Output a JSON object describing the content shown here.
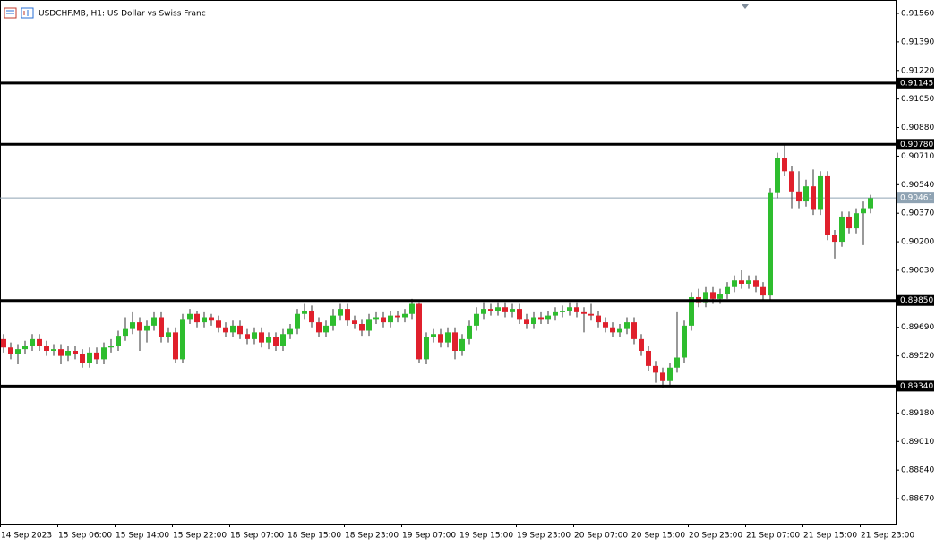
{
  "chart_data": {
    "type": "candlestick",
    "title": "USDCHF.MB, H1:  US Dollar vs Swiss Franc",
    "bull_color": "#2ebd2e",
    "bear_color": "#e0202c",
    "wick_color": "#333333",
    "ylim": [
      0.88521,
      0.9164
    ],
    "yticks": [
      {
        "value": 0.9156,
        "label": "0.91560"
      },
      {
        "value": 0.9139,
        "label": "0.91390"
      },
      {
        "value": 0.9122,
        "label": "0.91220"
      },
      {
        "value": 0.9105,
        "label": "0.91050"
      },
      {
        "value": 0.9088,
        "label": "0.90880"
      },
      {
        "value": 0.9071,
        "label": "0.90710"
      },
      {
        "value": 0.9054,
        "label": "0.90540"
      },
      {
        "value": 0.9037,
        "label": "0.90370"
      },
      {
        "value": 0.902,
        "label": "0.90200"
      },
      {
        "value": 0.9003,
        "label": "0.90030"
      },
      {
        "value": 0.8969,
        "label": "0.89690"
      },
      {
        "value": 0.8952,
        "label": "0.89520"
      },
      {
        "value": 0.8918,
        "label": "0.89180"
      },
      {
        "value": 0.8901,
        "label": "0.89010"
      },
      {
        "value": 0.8884,
        "label": "0.88840"
      },
      {
        "value": 0.8867,
        "label": "0.88670"
      }
    ],
    "levels": [
      {
        "value": 0.91145,
        "label": "0.91145"
      },
      {
        "value": 0.9078,
        "label": "0.90780"
      },
      {
        "value": 0.8985,
        "label": "0.89850"
      },
      {
        "value": 0.8934,
        "label": "0.89340"
      }
    ],
    "current_price": {
      "value": 0.90461,
      "label": "0.90461"
    },
    "categories": [
      "14 Sep 2023",
      null,
      null,
      null,
      null,
      null,
      null,
      null,
      "15 Sep 06:00",
      null,
      null,
      null,
      null,
      null,
      null,
      null,
      "15 Sep 14:00",
      null,
      null,
      null,
      null,
      null,
      null,
      null,
      "15 Sep 22:00",
      null,
      null,
      null,
      null,
      null,
      null,
      null,
      "18 Sep 07:00",
      null,
      null,
      null,
      null,
      null,
      null,
      null,
      "18 Sep 15:00",
      null,
      null,
      null,
      null,
      null,
      null,
      null,
      "18 Sep 23:00",
      null,
      null,
      null,
      null,
      null,
      null,
      null,
      "19 Sep 07:00",
      null,
      null,
      null,
      null,
      null,
      null,
      null,
      "19 Sep 15:00",
      null,
      null,
      null,
      null,
      null,
      null,
      null,
      "19 Sep 23:00",
      null,
      null,
      null,
      null,
      null,
      null,
      null,
      "20 Sep 07:00",
      null,
      null,
      null,
      null,
      null,
      null,
      null,
      "20 Sep 15:00",
      null,
      null,
      null,
      null,
      null,
      null,
      null,
      "20 Sep 23:00",
      null,
      null,
      null,
      null,
      null,
      null,
      null,
      "21 Sep 07:00",
      null,
      null,
      null,
      null,
      null,
      null,
      null,
      "21 Sep 15:00",
      null,
      null,
      null,
      null,
      null,
      null,
      null,
      "21 Sep 23:00",
      null
    ],
    "open": [
      0.8962,
      0.8957,
      0.8953,
      0.8956,
      0.8958,
      0.8962,
      0.8958,
      0.8955,
      0.8956,
      0.8952,
      0.8955,
      0.8953,
      0.8948,
      0.8954,
      0.895,
      0.8957,
      0.8958,
      0.8964,
      0.8968,
      0.8972,
      0.8967,
      0.897,
      0.8975,
      0.8963,
      0.8966,
      0.895,
      0.8974,
      0.8977,
      0.8972,
      0.8975,
      0.8973,
      0.8969,
      0.8966,
      0.897,
      0.8965,
      0.8962,
      0.8966,
      0.896,
      0.8963,
      0.8958,
      0.8965,
      0.8968,
      0.8977,
      0.8979,
      0.8972,
      0.8966,
      0.897,
      0.8976,
      0.898,
      0.8973,
      0.8971,
      0.8967,
      0.8974,
      0.8975,
      0.8972,
      0.8976,
      0.8975,
      0.8977,
      0.8983,
      0.895,
      0.8963,
      0.8965,
      0.896,
      0.8966,
      0.8955,
      0.8962,
      0.897,
      0.8977,
      0.898,
      0.8979,
      0.8981,
      0.8978,
      0.898,
      0.8974,
      0.8971,
      0.8975,
      0.8974,
      0.8976,
      0.8978,
      0.8979,
      0.8981,
      0.8978,
      0.8977,
      0.8976,
      0.8972,
      0.8969,
      0.8966,
      0.8968,
      0.8972,
      0.8962,
      0.8955,
      0.8946,
      0.8942,
      0.8937,
      0.8945,
      0.8951,
      0.897,
      0.8987,
      0.8984,
      0.899,
      0.8986,
      0.8989,
      0.8993,
      0.8997,
      0.8995,
      0.8997,
      0.8993,
      0.8988,
      0.9049,
      0.907,
      0.9062,
      0.905,
      0.9044,
      0.9053,
      0.9039,
      0.9059,
      0.9024,
      0.902,
      0.9035,
      0.9028,
      0.9037,
      0.904
    ],
    "high": [
      0.8965,
      0.896,
      0.8959,
      0.8961,
      0.8965,
      0.8965,
      0.8961,
      0.8959,
      0.8959,
      0.8958,
      0.8958,
      0.8956,
      0.8957,
      0.8957,
      0.896,
      0.8962,
      0.8967,
      0.8975,
      0.8978,
      0.8975,
      0.8973,
      0.8978,
      0.8978,
      0.8969,
      0.8969,
      0.8977,
      0.898,
      0.8979,
      0.8978,
      0.8977,
      0.8976,
      0.8972,
      0.8973,
      0.8973,
      0.8968,
      0.8969,
      0.8969,
      0.8966,
      0.8966,
      0.8968,
      0.8971,
      0.898,
      0.8983,
      0.8982,
      0.8975,
      0.8973,
      0.898,
      0.8983,
      0.8983,
      0.8976,
      0.8974,
      0.8977,
      0.8978,
      0.8978,
      0.8979,
      0.8979,
      0.898,
      0.8986,
      0.8984,
      0.8966,
      0.8968,
      0.8968,
      0.8969,
      0.8969,
      0.8965,
      0.8973,
      0.8981,
      0.8984,
      0.8983,
      0.8984,
      0.8984,
      0.8983,
      0.8983,
      0.8977,
      0.8978,
      0.8978,
      0.8979,
      0.8981,
      0.8982,
      0.8984,
      0.8984,
      0.8981,
      0.8983,
      0.8979,
      0.8975,
      0.8972,
      0.8971,
      0.8975,
      0.8975,
      0.8965,
      0.8958,
      0.8949,
      0.8945,
      0.8948,
      0.8978,
      0.8973,
      0.899,
      0.8992,
      0.8993,
      0.8993,
      0.8992,
      0.8996,
      0.9,
      0.9003,
      0.9,
      0.9,
      0.8996,
      0.9052,
      0.9073,
      0.9078,
      0.9065,
      0.9062,
      0.9057,
      0.9063,
      0.9062,
      0.9062,
      0.9027,
      0.9038,
      0.9038,
      0.904,
      0.9044,
      0.9048
    ],
    "low": [
      0.8954,
      0.895,
      0.8947,
      0.8953,
      0.8955,
      0.8955,
      0.8952,
      0.8952,
      0.8947,
      0.8949,
      0.895,
      0.8945,
      0.8945,
      0.8947,
      0.8947,
      0.8954,
      0.8955,
      0.8961,
      0.8965,
      0.8955,
      0.896,
      0.8967,
      0.896,
      0.896,
      0.8948,
      0.8948,
      0.8971,
      0.8969,
      0.8969,
      0.897,
      0.8966,
      0.8963,
      0.8963,
      0.8962,
      0.8959,
      0.8959,
      0.8957,
      0.8956,
      0.8955,
      0.8955,
      0.8962,
      0.8965,
      0.8974,
      0.8969,
      0.8963,
      0.8963,
      0.8967,
      0.8973,
      0.897,
      0.8968,
      0.8964,
      0.8964,
      0.8971,
      0.8969,
      0.8969,
      0.8972,
      0.8972,
      0.8974,
      0.8948,
      0.8947,
      0.896,
      0.8957,
      0.8957,
      0.895,
      0.8952,
      0.8959,
      0.8967,
      0.8974,
      0.8976,
      0.8976,
      0.8975,
      0.8975,
      0.8971,
      0.8968,
      0.8968,
      0.8971,
      0.8971,
      0.8973,
      0.8975,
      0.8976,
      0.8975,
      0.8966,
      0.8973,
      0.8969,
      0.8966,
      0.8963,
      0.8963,
      0.8965,
      0.8959,
      0.8952,
      0.8943,
      0.8936,
      0.8933,
      0.8934,
      0.8942,
      0.8948,
      0.8967,
      0.8981,
      0.8981,
      0.8983,
      0.8983,
      0.8986,
      0.899,
      0.8992,
      0.8992,
      0.899,
      0.8985,
      0.8985,
      0.9046,
      0.9059,
      0.904,
      0.904,
      0.9041,
      0.9036,
      0.9036,
      0.9021,
      0.901,
      0.9017,
      0.9025,
      0.9025,
      0.9018,
      0.9037
    ],
    "close": [
      0.8957,
      0.8953,
      0.8956,
      0.8958,
      0.8962,
      0.8958,
      0.8955,
      0.8956,
      0.8952,
      0.8955,
      0.8953,
      0.8948,
      0.8954,
      0.895,
      0.8957,
      0.8958,
      0.8964,
      0.8968,
      0.8972,
      0.8967,
      0.897,
      0.8975,
      0.8963,
      0.8966,
      0.895,
      0.8974,
      0.8977,
      0.8972,
      0.8975,
      0.8973,
      0.8969,
      0.8966,
      0.897,
      0.8965,
      0.8962,
      0.8966,
      0.896,
      0.8963,
      0.8958,
      0.8965,
      0.8968,
      0.8977,
      0.8979,
      0.8972,
      0.8966,
      0.897,
      0.8976,
      0.898,
      0.8973,
      0.8971,
      0.8967,
      0.8974,
      0.8975,
      0.8972,
      0.8976,
      0.8975,
      0.8977,
      0.8983,
      0.895,
      0.8963,
      0.8965,
      0.896,
      0.8966,
      0.8955,
      0.8962,
      0.897,
      0.8977,
      0.898,
      0.8979,
      0.8981,
      0.8978,
      0.898,
      0.8974,
      0.8971,
      0.8975,
      0.8974,
      0.8976,
      0.8978,
      0.8979,
      0.8981,
      0.8978,
      0.8977,
      0.8976,
      0.8972,
      0.8969,
      0.8966,
      0.8968,
      0.8972,
      0.8962,
      0.8955,
      0.8946,
      0.8942,
      0.8937,
      0.8945,
      0.8951,
      0.897,
      0.8987,
      0.8984,
      0.899,
      0.8986,
      0.8989,
      0.8993,
      0.8997,
      0.8995,
      0.8997,
      0.8993,
      0.8988,
      0.9049,
      0.907,
      0.9062,
      0.905,
      0.9044,
      0.9053,
      0.9039,
      0.9059,
      0.9024,
      0.902,
      0.9035,
      0.9028,
      0.9037,
      0.904,
      0.9046
    ]
  }
}
